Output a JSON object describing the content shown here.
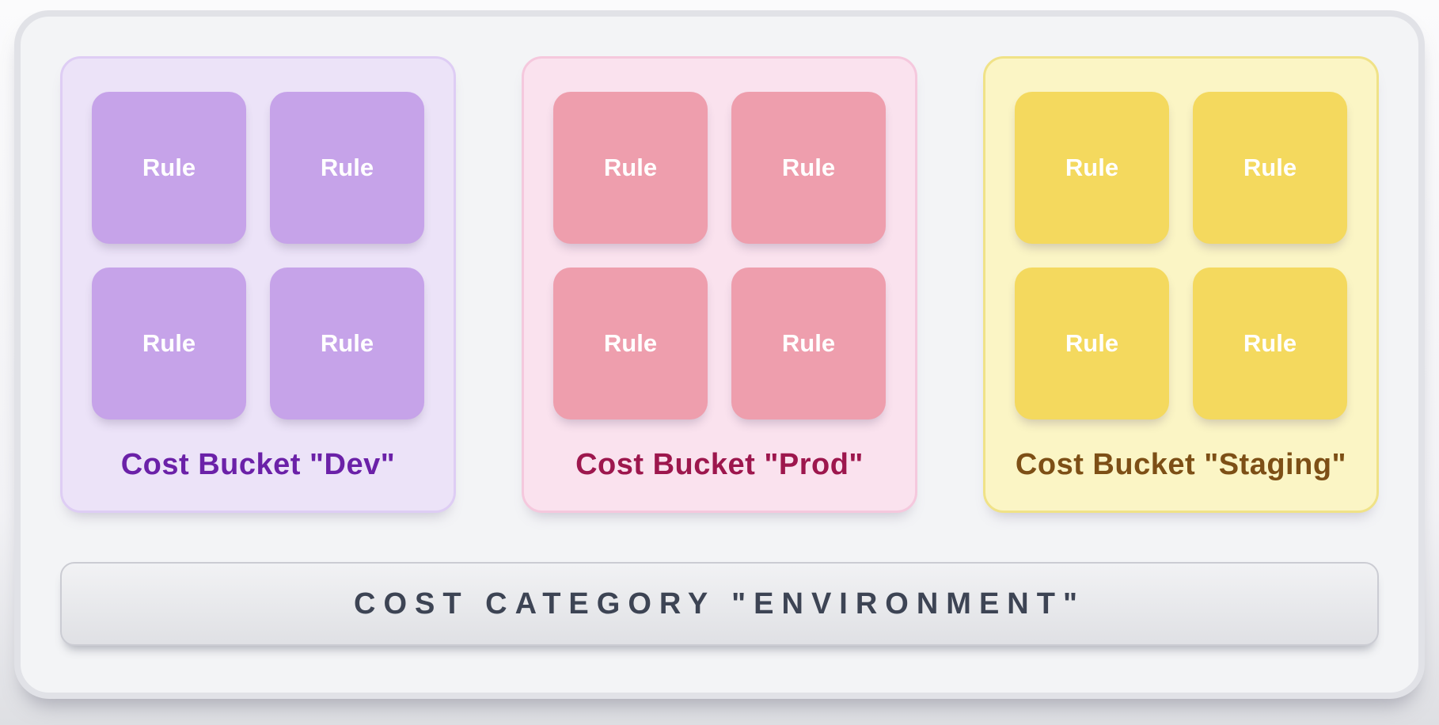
{
  "frame": {
    "bg": "#f3f4f6",
    "border": "#e1e2e7"
  },
  "buckets": [
    {
      "id": "dev",
      "label": "Cost Bucket \"Dev\"",
      "rules": [
        "Rule",
        "Rule",
        "Rule",
        "Rule"
      ],
      "card_bg": "#ece3f8",
      "card_border": "#decdf4",
      "rule_bg": "#c6a3e9",
      "rule_text_color": "#ffffff",
      "label_color": "#6b21a8"
    },
    {
      "id": "prod",
      "label": "Cost Bucket \"Prod\"",
      "rules": [
        "Rule",
        "Rule",
        "Rule",
        "Rule"
      ],
      "card_bg": "#fae2ee",
      "card_border": "#f5c8dd",
      "rule_bg": "#ee9ead",
      "rule_text_color": "#ffffff",
      "label_color": "#9d174d"
    },
    {
      "id": "staging",
      "label": "Cost Bucket \"Staging\"",
      "rules": [
        "Rule",
        "Rule",
        "Rule",
        "Rule"
      ],
      "card_bg": "#fbf5c5",
      "card_border": "#f0e287",
      "rule_bg": "#f4d95e",
      "rule_text_color": "#ffffff",
      "label_color": "#7d4f16"
    }
  ],
  "category_bar": {
    "label": "COST CATEGORY \"ENVIRONMENT\"",
    "bg": "#e4e5e9",
    "border": "#cbccd3",
    "text_color": "#3d4454"
  }
}
